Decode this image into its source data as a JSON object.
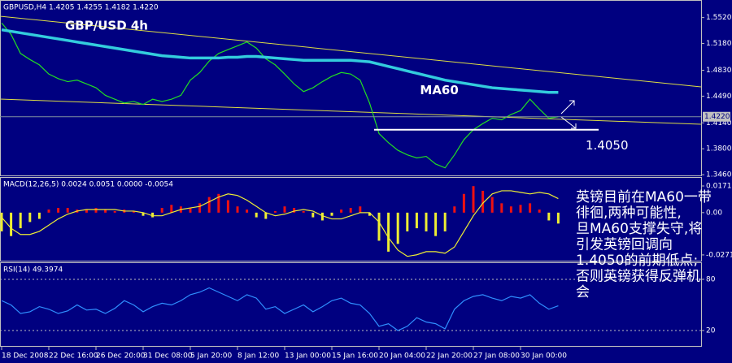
{
  "chart_data": [
    {
      "type": "line",
      "title": "GBPUSD,H4  1.4205 1.4255 1.4182 1.4220",
      "annotation": "GBP/USD 4h",
      "ylim": [
        1.344,
        1.574
      ],
      "yticks": [
        {
          "value": 1.552,
          "label": "1.5520"
        },
        {
          "value": 1.518,
          "label": "1.5180"
        },
        {
          "value": 1.483,
          "label": "1.4830"
        },
        {
          "value": 1.449,
          "label": "1.4490"
        },
        {
          "value": 1.414,
          "label": "1.4140"
        },
        {
          "value": 1.38,
          "label": "1.3800"
        },
        {
          "value": 1.346,
          "label": "1.3460"
        }
      ],
      "last_price": {
        "value": 1.422,
        "label": "1.4220"
      },
      "support": {
        "value": 1.405,
        "label": "1.4050"
      },
      "series": [
        {
          "color": "#22dd22",
          "values": [
            1.545,
            1.53,
            1.505,
            1.497,
            1.49,
            1.478,
            1.472,
            1.468,
            1.47,
            1.465,
            1.46,
            1.45,
            1.445,
            1.44,
            1.442,
            1.438,
            1.445,
            1.442,
            1.445,
            1.45,
            1.47,
            1.48,
            1.495,
            1.505,
            1.51,
            1.515,
            1.52,
            1.512,
            1.498,
            1.49,
            1.478,
            1.465,
            1.455,
            1.46,
            1.468,
            1.475,
            1.48,
            1.478,
            1.47,
            1.44,
            1.4,
            1.388,
            1.378,
            1.372,
            1.368,
            1.37,
            1.36,
            1.355,
            1.372,
            1.392,
            1.405,
            1.413,
            1.42,
            1.418,
            1.425,
            1.43,
            1.445,
            1.432,
            1.42,
            1.422
          ]
        },
        {
          "name": "MA60",
          "color": "#33ccdd",
          "values": [
            1.536,
            1.534,
            1.532,
            1.53,
            1.528,
            1.526,
            1.524,
            1.522,
            1.52,
            1.518,
            1.516,
            1.514,
            1.512,
            1.51,
            1.508,
            1.506,
            1.504,
            1.502,
            1.501,
            1.5,
            1.499,
            1.499,
            1.499,
            1.499,
            1.5,
            1.5,
            1.501,
            1.501,
            1.5,
            1.499,
            1.498,
            1.497,
            1.496,
            1.496,
            1.496,
            1.496,
            1.496,
            1.496,
            1.495,
            1.494,
            1.491,
            1.488,
            1.485,
            1.482,
            1.479,
            1.476,
            1.473,
            1.47,
            1.468,
            1.466,
            1.464,
            1.462,
            1.46,
            1.459,
            1.458,
            1.457,
            1.456,
            1.455,
            1.454,
            1.454
          ]
        }
      ]
    },
    {
      "type": "bar",
      "title": "MACD(12,26,5) 0.0024 0.0051 0.0000 -0.0054",
      "ylim": [
        -0.0313,
        0.0223
      ],
      "yticks": [
        0.0171,
        {
          "value": 0,
          "label": "0.00"
        },
        -0.0271
      ],
      "positive_color": "#ee1111",
      "negative_color": "#eeee33",
      "values": [
        -0.012,
        -0.015,
        -0.01,
        -0.006,
        -0.004,
        0.002,
        0.003,
        0.003,
        0.002,
        0.002,
        0.003,
        0.002,
        0.001,
        0.002,
        0.001,
        -0.002,
        -0.003,
        0.003,
        0.005,
        0.004,
        0.003,
        0.006,
        0.01,
        0.012,
        0.008,
        0.004,
        0.002,
        -0.003,
        -0.004,
        0.001,
        0.004,
        0.003,
        0.001,
        -0.003,
        -0.005,
        -0.002,
        0.002,
        0.003,
        0.004,
        -0.002,
        -0.018,
        -0.025,
        -0.02,
        -0.012,
        -0.01,
        -0.012,
        -0.015,
        -0.012,
        0.004,
        0.012,
        0.017,
        0.014,
        0.01,
        0.006,
        0.004,
        0.005,
        0.006,
        0.002,
        -0.005,
        -0.007
      ],
      "series": [
        {
          "color": "#eeee33",
          "values": [
            -0.003,
            -0.01,
            -0.014,
            -0.014,
            -0.012,
            -0.008,
            -0.004,
            -0.001,
            0.001,
            0.002,
            0.002,
            0.002,
            0.002,
            0.001,
            0.001,
            0.0,
            -0.002,
            -0.002,
            0.0,
            0.002,
            0.003,
            0.004,
            0.007,
            0.01,
            0.012,
            0.011,
            0.008,
            0.004,
            0.0,
            -0.002,
            -0.001,
            0.001,
            0.002,
            0.001,
            -0.002,
            -0.004,
            -0.004,
            -0.002,
            0.0,
            0.0,
            -0.006,
            -0.016,
            -0.024,
            -0.028,
            -0.027,
            -0.025,
            -0.025,
            -0.026,
            -0.022,
            -0.012,
            -0.002,
            0.006,
            0.012,
            0.014,
            0.014,
            0.013,
            0.012,
            0.013,
            0.012,
            0.009
          ]
        }
      ]
    },
    {
      "type": "line",
      "title": "RSI(14) 49.3974",
      "ylim": [
        1,
        99
      ],
      "yticks": [
        80,
        20
      ],
      "grid": true,
      "categories": [
        "18 Dec 2008",
        null,
        null,
        null,
        null,
        "22 Dec 16:00",
        null,
        null,
        null,
        null,
        "26 Dec 20:00",
        null,
        null,
        null,
        null,
        "31 Dec 08:00",
        null,
        null,
        null,
        null,
        "5 Jan 20:00",
        null,
        null,
        null,
        null,
        "8 Jan 12:00",
        null,
        null,
        null,
        null,
        "13 Jan 00:00",
        null,
        null,
        null,
        null,
        "15 Jan 16:00",
        null,
        null,
        null,
        null,
        "20 Jan 04:00",
        null,
        null,
        null,
        null,
        "22 Jan 20:00",
        null,
        null,
        null,
        null,
        "27 Jan 08:00",
        null,
        null,
        null,
        null,
        "30 Jan 00:00",
        null,
        null,
        null,
        null
      ],
      "series": [
        {
          "color": "#2f8fff",
          "values": [
            55,
            50,
            40,
            42,
            48,
            45,
            40,
            43,
            50,
            44,
            45,
            40,
            46,
            55,
            50,
            42,
            48,
            52,
            50,
            55,
            62,
            65,
            70,
            65,
            60,
            55,
            62,
            58,
            45,
            48,
            40,
            45,
            50,
            42,
            48,
            55,
            58,
            52,
            50,
            40,
            25,
            28,
            20,
            25,
            35,
            30,
            28,
            22,
            45,
            55,
            60,
            62,
            58,
            55,
            60,
            58,
            62,
            52,
            45,
            49
          ]
        }
      ]
    }
  ],
  "note": {
    "lines": [
      "英镑目前在MA60一带",
      "徘徊,两种可能性,",
      "旦MA60支撑失守,将",
      "引发英镑回调向",
      "1.4050的前期低点;",
      "否则英镑获得反弹机",
      "会"
    ]
  }
}
